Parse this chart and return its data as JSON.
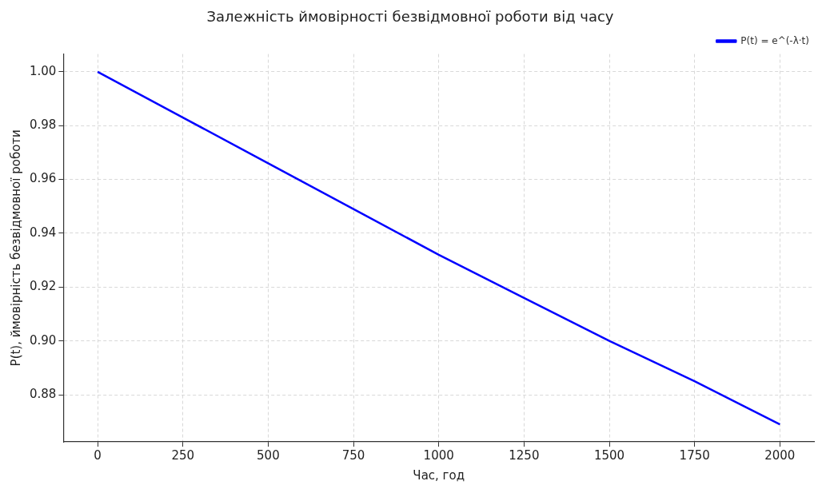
{
  "chart_data": {
    "type": "line",
    "title": "Залежність ймовірності безвідмовної роботи від часу",
    "xlabel": "Час, год",
    "ylabel": "P(t), ймовірність безвідмовної роботи",
    "x": [
      0,
      250,
      500,
      750,
      1000,
      1250,
      1500,
      1750,
      2000
    ],
    "series": [
      {
        "name": "P(t) = e^(-λ·t)",
        "color": "#0000ff",
        "values": [
          1.0,
          0.983,
          0.966,
          0.949,
          0.932,
          0.916,
          0.9,
          0.885,
          0.869
        ]
      }
    ],
    "xlim": [
      -100,
      2100
    ],
    "xticks": [
      0,
      250,
      500,
      750,
      1000,
      1250,
      1500,
      1750,
      2000
    ],
    "ylim": [
      0.8625,
      1.0066
    ],
    "yticks": [
      {
        "value": 0.88,
        "label": "0.88"
      },
      {
        "value": 0.9,
        "label": "0.90"
      },
      {
        "value": 0.92,
        "label": "0.92"
      },
      {
        "value": 0.94,
        "label": "0.94"
      },
      {
        "value": 0.96,
        "label": "0.96"
      },
      {
        "value": 0.98,
        "label": "0.98"
      },
      {
        "value": 1.0,
        "label": "1.00"
      }
    ],
    "grid": true,
    "legend": "top right",
    "line_style": "solid",
    "marker": "none"
  }
}
